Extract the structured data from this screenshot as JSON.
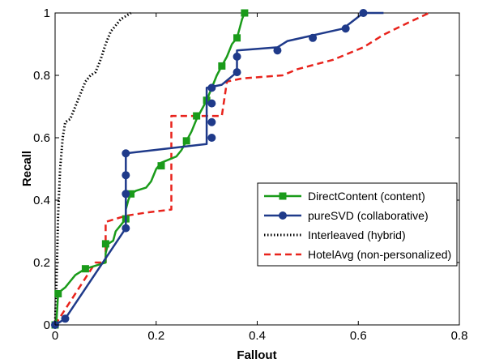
{
  "chart_data": {
    "type": "line",
    "title": "",
    "xlabel": "Fallout",
    "ylabel": "Recall",
    "xlim": [
      0,
      0.8
    ],
    "ylim": [
      0,
      1
    ],
    "x_ticks": [
      "0",
      "0.2",
      "0.4",
      "0.6",
      "0.8"
    ],
    "y_ticks": [
      "0",
      "0.2",
      "0.4",
      "0.6",
      "0.8",
      "1"
    ],
    "grid": false,
    "legend_position": "lower-right",
    "series": [
      {
        "name": "DirectContent (content)",
        "color": "#1a9b1a",
        "line_style": "solid",
        "marker": "square",
        "points": [
          [
            0,
            0
          ],
          [
            0.003,
            0.02
          ],
          [
            0.006,
            0.1
          ],
          [
            0.012,
            0.11
          ],
          [
            0.02,
            0.12
          ],
          [
            0.03,
            0.14
          ],
          [
            0.04,
            0.16
          ],
          [
            0.06,
            0.18
          ],
          [
            0.08,
            0.19
          ],
          [
            0.1,
            0.2
          ],
          [
            0.1,
            0.23
          ],
          [
            0.105,
            0.26
          ],
          [
            0.115,
            0.27
          ],
          [
            0.12,
            0.3
          ],
          [
            0.13,
            0.32
          ],
          [
            0.14,
            0.34
          ],
          [
            0.14,
            0.37
          ],
          [
            0.145,
            0.4
          ],
          [
            0.15,
            0.42
          ],
          [
            0.16,
            0.43
          ],
          [
            0.18,
            0.44
          ],
          [
            0.19,
            0.46
          ],
          [
            0.2,
            0.5
          ],
          [
            0.21,
            0.52
          ],
          [
            0.24,
            0.54
          ],
          [
            0.25,
            0.56
          ],
          [
            0.26,
            0.59
          ],
          [
            0.27,
            0.62
          ],
          [
            0.28,
            0.66
          ],
          [
            0.29,
            0.69
          ],
          [
            0.3,
            0.72
          ],
          [
            0.31,
            0.76
          ],
          [
            0.32,
            0.8
          ],
          [
            0.33,
            0.83
          ],
          [
            0.34,
            0.86
          ],
          [
            0.35,
            0.9
          ],
          [
            0.36,
            0.92
          ],
          [
            0.365,
            0.95
          ],
          [
            0.37,
            0.98
          ],
          [
            0.375,
            1.0
          ]
        ],
        "marker_points": [
          [
            0,
            0
          ],
          [
            0.006,
            0.1
          ],
          [
            0.06,
            0.18
          ],
          [
            0.1,
            0.26
          ],
          [
            0.14,
            0.34
          ],
          [
            0.15,
            0.42
          ],
          [
            0.21,
            0.51
          ],
          [
            0.26,
            0.59
          ],
          [
            0.28,
            0.67
          ],
          [
            0.3,
            0.72
          ],
          [
            0.33,
            0.83
          ],
          [
            0.36,
            0.92
          ],
          [
            0.375,
            1.0
          ]
        ]
      },
      {
        "name": "pureSVD (collaborative)",
        "color": "#1f3a8a",
        "line_style": "solid",
        "marker": "circle",
        "points": [
          [
            0,
            0
          ],
          [
            0.02,
            0.02
          ],
          [
            0.14,
            0.31
          ],
          [
            0.14,
            0.55
          ],
          [
            0.3,
            0.58
          ],
          [
            0.3,
            0.76
          ],
          [
            0.33,
            0.77
          ],
          [
            0.36,
            0.81
          ],
          [
            0.36,
            0.88
          ],
          [
            0.44,
            0.89
          ],
          [
            0.46,
            0.91
          ],
          [
            0.57,
            0.95
          ],
          [
            0.61,
            1.0
          ],
          [
            0.65,
            1.0
          ]
        ],
        "marker_points": [
          [
            0,
            0
          ],
          [
            0.02,
            0.02
          ],
          [
            0.14,
            0.31
          ],
          [
            0.14,
            0.42
          ],
          [
            0.14,
            0.48
          ],
          [
            0.14,
            0.55
          ],
          [
            0.31,
            0.6
          ],
          [
            0.31,
            0.65
          ],
          [
            0.31,
            0.71
          ],
          [
            0.31,
            0.76
          ],
          [
            0.36,
            0.81
          ],
          [
            0.36,
            0.86
          ],
          [
            0.44,
            0.88
          ],
          [
            0.51,
            0.92
          ],
          [
            0.575,
            0.95
          ],
          [
            0.61,
            1.0
          ]
        ]
      },
      {
        "name": "Interleaved (hybrid)",
        "color": "#000000",
        "line_style": "dotted",
        "marker": "none",
        "points": [
          [
            0,
            0
          ],
          [
            0.003,
            0.15
          ],
          [
            0.006,
            0.35
          ],
          [
            0.01,
            0.5
          ],
          [
            0.015,
            0.6
          ],
          [
            0.02,
            0.65
          ],
          [
            0.03,
            0.66
          ],
          [
            0.04,
            0.7
          ],
          [
            0.05,
            0.74
          ],
          [
            0.06,
            0.78
          ],
          [
            0.07,
            0.8
          ],
          [
            0.08,
            0.81
          ],
          [
            0.09,
            0.85
          ],
          [
            0.1,
            0.9
          ],
          [
            0.11,
            0.94
          ],
          [
            0.12,
            0.96
          ],
          [
            0.13,
            0.98
          ],
          [
            0.14,
            0.99
          ],
          [
            0.15,
            1.0
          ]
        ],
        "marker_points": []
      },
      {
        "name": "HotelAvg (non-personalized)",
        "color": "#e8231c",
        "line_style": "dashed",
        "marker": "none",
        "points": [
          [
            0,
            0
          ],
          [
            0.08,
            0.2
          ],
          [
            0.1,
            0.2
          ],
          [
            0.1,
            0.33
          ],
          [
            0.14,
            0.35
          ],
          [
            0.18,
            0.36
          ],
          [
            0.23,
            0.37
          ],
          [
            0.23,
            0.67
          ],
          [
            0.33,
            0.67
          ],
          [
            0.34,
            0.78
          ],
          [
            0.37,
            0.79
          ],
          [
            0.45,
            0.8
          ],
          [
            0.48,
            0.82
          ],
          [
            0.55,
            0.85
          ],
          [
            0.61,
            0.89
          ],
          [
            0.65,
            0.93
          ],
          [
            0.7,
            0.97
          ],
          [
            0.74,
            1.0
          ]
        ],
        "marker_points": []
      }
    ]
  }
}
